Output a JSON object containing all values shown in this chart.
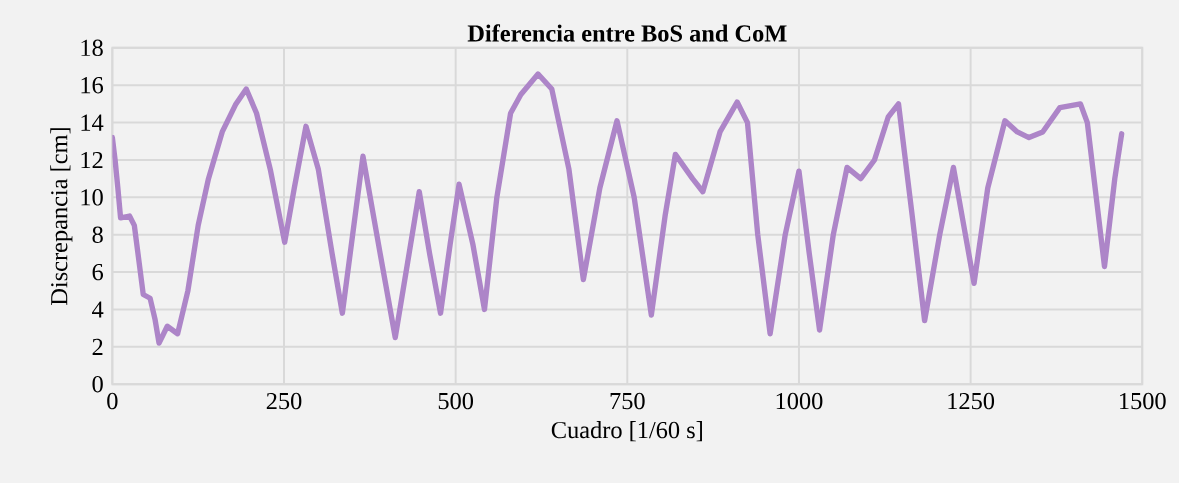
{
  "chart_data": {
    "type": "line",
    "title": "Diferencia entre BoS and CoM",
    "xlabel": "Cuadro [1/60 s]",
    "ylabel": "Discrepancia  [cm]",
    "xlim": [
      0,
      1500
    ],
    "xticks": [
      0,
      250,
      500,
      750,
      1000,
      1250,
      1500
    ],
    "ylim": [
      0,
      18
    ],
    "yticks": [
      0,
      2,
      4,
      6,
      8,
      10,
      12,
      14,
      16,
      18
    ],
    "grid": true,
    "marker": "none",
    "line_style": "solid",
    "series": [
      {
        "color": "#ad85c8",
        "x": [
          0,
          4,
          8,
          12,
          25,
          32,
          45,
          55,
          62,
          68,
          80,
          95,
          110,
          125,
          140,
          160,
          180,
          195,
          210,
          230,
          251,
          265,
          282,
          300,
          320,
          335,
          350,
          365,
          390,
          412,
          430,
          447,
          462,
          478,
          492,
          505,
          525,
          542,
          560,
          580,
          595,
          620,
          640,
          665,
          686,
          710,
          735,
          760,
          785,
          805,
          820,
          845,
          860,
          885,
          910,
          925,
          940,
          958,
          980,
          1000,
          1015,
          1030,
          1050,
          1070,
          1090,
          1110,
          1130,
          1145,
          1165,
          1183,
          1205,
          1225,
          1240,
          1255,
          1275,
          1300,
          1318,
          1335,
          1355,
          1380,
          1410,
          1420,
          1445,
          1460,
          1470
        ],
        "values": [
          13.2,
          12,
          10.5,
          8.9,
          9.0,
          8.5,
          4.8,
          4.6,
          3.5,
          2.2,
          3.1,
          2.7,
          5.0,
          8.5,
          11.0,
          13.5,
          15.0,
          15.8,
          14.5,
          11.5,
          7.6,
          10.5,
          13.8,
          11.5,
          7.0,
          3.8,
          8.0,
          12.2,
          7.0,
          2.5,
          6.5,
          10.3,
          7.0,
          3.8,
          7.5,
          10.7,
          7.5,
          4.0,
          10.0,
          14.5,
          15.5,
          16.6,
          15.8,
          11.5,
          5.6,
          10.5,
          14.1,
          10.0,
          3.7,
          9.0,
          12.3,
          11.0,
          10.3,
          13.5,
          15.1,
          14.0,
          8.0,
          2.7,
          8.0,
          11.4,
          7.0,
          2.9,
          8.0,
          11.6,
          11.0,
          12.0,
          14.3,
          15.0,
          9.0,
          3.4,
          8.0,
          11.6,
          8.5,
          5.4,
          10.5,
          14.1,
          13.5,
          13.2,
          13.5,
          14.8,
          15.0,
          14.0,
          6.3,
          11.0,
          13.4
        ]
      }
    ]
  }
}
